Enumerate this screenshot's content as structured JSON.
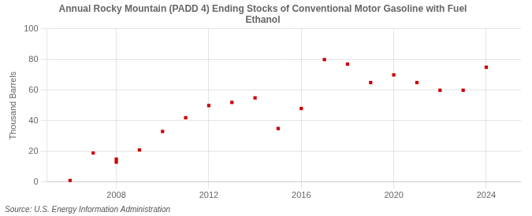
{
  "chart_data": {
    "type": "scatter",
    "title": "Annual Rocky Mountain (PADD 4) Ending Stocks of Conventional Motor Gasoline with Fuel\nEthanol",
    "ylabel": "Thousand Barrels",
    "annotations": [
      "Source: U.S. Energy Information Administration"
    ],
    "x": [
      2006,
      2007,
      2008,
      2008,
      2009,
      2010,
      2011,
      2012,
      2013,
      2014,
      2015,
      2016,
      2017,
      2018,
      2019,
      2020,
      2021,
      2022,
      2023,
      2024
    ],
    "values": [
      1,
      19,
      13,
      15,
      21,
      33,
      42,
      50,
      52,
      55,
      35,
      48,
      80,
      77,
      65,
      70,
      65,
      60,
      60,
      75
    ],
    "color": "#cc0000",
    "marker": "square",
    "xlim": [
      2005.0,
      2025.5
    ],
    "ylim": [
      0,
      100
    ],
    "xticks": [
      2008,
      2012,
      2016,
      2020,
      2024
    ],
    "yticks": [
      0,
      20,
      40,
      60,
      80,
      100
    ],
    "grid": true
  }
}
